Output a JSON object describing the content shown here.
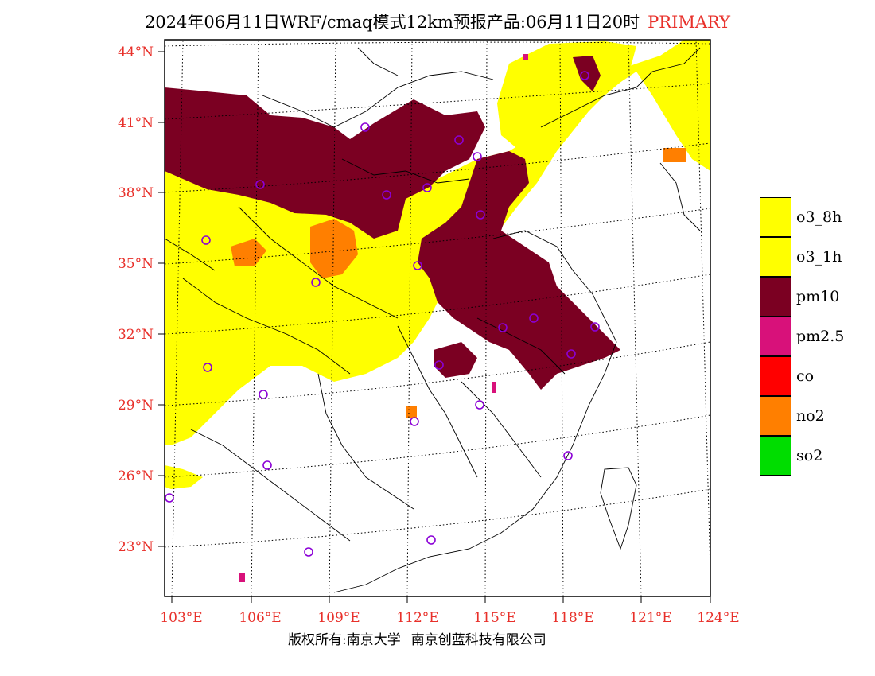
{
  "header": {
    "title": "2024年06月11日WRF/cmaq模式12km预报产品:06月11日20时",
    "tag": "PRIMARY"
  },
  "footer": {
    "left": "版权所有:南京大学",
    "right": "南京创蓝科技有限公司"
  },
  "axes": {
    "lat_labels": [
      "44°N",
      "41°N",
      "38°N",
      "35°N",
      "32°N",
      "29°N",
      "26°N",
      "23°N"
    ],
    "lon_labels": [
      "103°E",
      "106°E",
      "109°E",
      "112°E",
      "115°E",
      "118°E",
      "121°E",
      "124°E"
    ]
  },
  "legend": [
    {
      "label": "o3_8h",
      "color": "#ffff00"
    },
    {
      "label": "o3_1h",
      "color": "#ffff00"
    },
    {
      "label": "pm10",
      "color": "#7b0022"
    },
    {
      "label": "pm2.5",
      "color": "#d8117a"
    },
    {
      "label": "co",
      "color": "#ff0000"
    },
    {
      "label": "no2",
      "color": "#ff7f00"
    },
    {
      "label": "so2",
      "color": "#00dd00"
    }
  ],
  "colors": {
    "o3": "#ffff00",
    "pm10": "#7b0022",
    "pm25": "#d8117a",
    "no2": "#ff7f00",
    "station": "#8b00d6",
    "tick": "#e8302a"
  }
}
